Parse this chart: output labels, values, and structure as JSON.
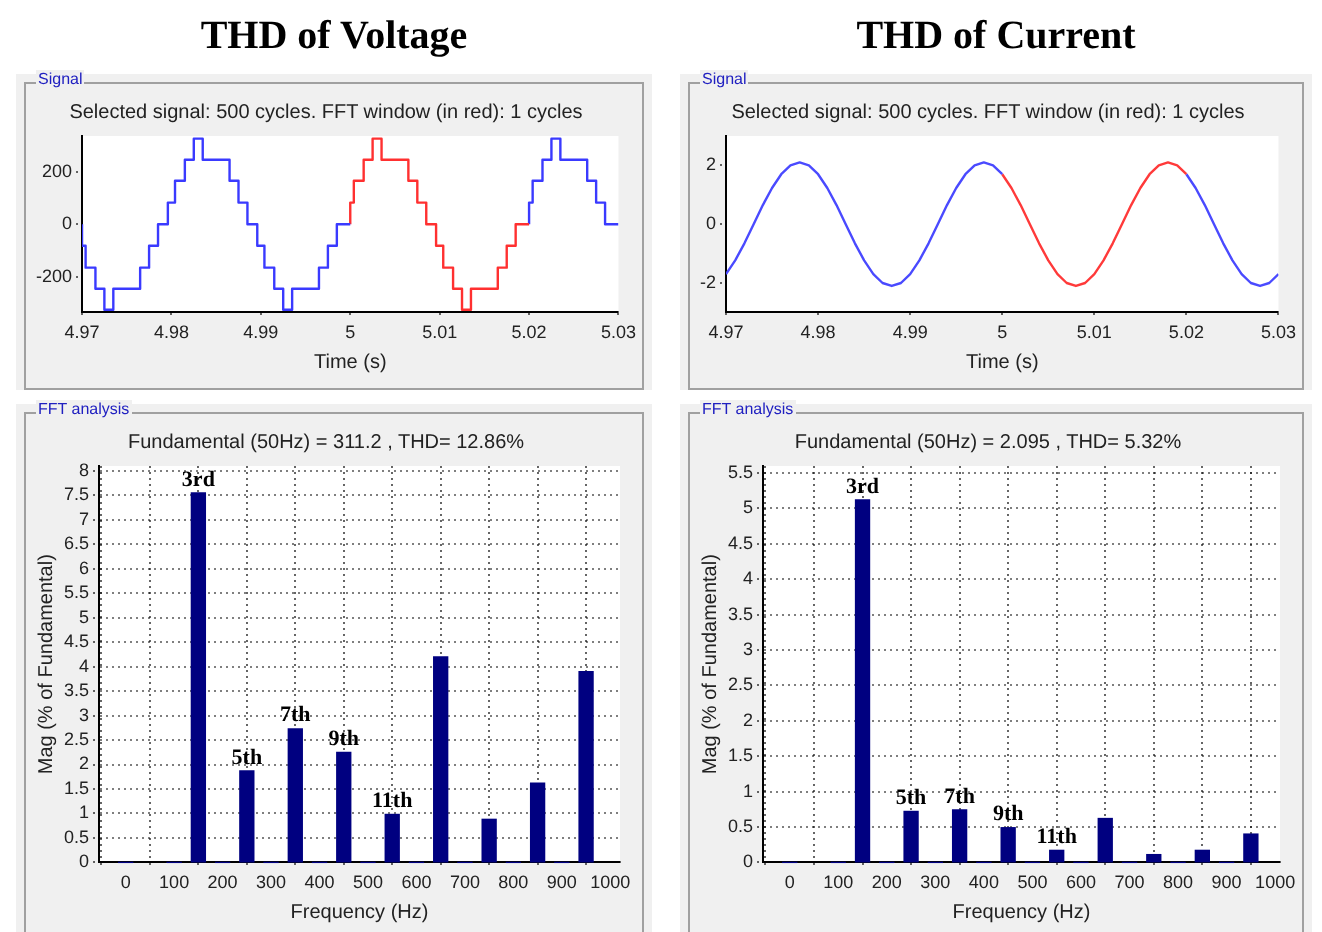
{
  "chart_data": [
    {
      "type": "step",
      "title": "Selected signal: 500 cycles. FFT window (in red): 1 cycles",
      "xlabel": "Time (s)",
      "annotations": [
        "THD of Voltage",
        "Signal"
      ],
      "xlim": [
        4.97,
        5.03
      ],
      "xticks": [
        4.97,
        4.98,
        4.99,
        5,
        5.01,
        5.02,
        5.03
      ],
      "ylim": [
        -335,
        335
      ],
      "yticks": [
        -200,
        0,
        200
      ],
      "series": [
        {
          "color": "#3a3aff",
          "x": [
            4.97,
            4.9704,
            4.9715,
            4.9725,
            4.9735,
            4.9765,
            4.9775,
            4.9785,
            4.9796,
            4.9804,
            4.9815,
            4.9825,
            4.9835,
            4.9865,
            4.9875,
            4.9885,
            4.9896,
            4.9904,
            4.9915,
            4.9925,
            4.9935,
            4.9965,
            4.9975,
            4.9985,
            4.9996,
            5.0
          ],
          "values": [
            0,
            -82,
            -165,
            -245,
            -325,
            -245,
            -165,
            -82,
            0,
            82,
            165,
            245,
            325,
            245,
            165,
            82,
            0,
            -82,
            -165,
            -245,
            -325,
            -245,
            -165,
            -82,
            0,
            0
          ]
        },
        {
          "color": "#ff3030",
          "x": [
            5.0,
            5.0004,
            5.0015,
            5.0025,
            5.0035,
            5.0065,
            5.0075,
            5.0085,
            5.0096,
            5.0104,
            5.0115,
            5.0125,
            5.0135,
            5.0165,
            5.0175,
            5.0185,
            5.0196,
            5.02
          ],
          "values": [
            0,
            82,
            165,
            245,
            325,
            245,
            165,
            82,
            0,
            -82,
            -165,
            -245,
            -325,
            -245,
            -165,
            -82,
            0,
            0
          ]
        },
        {
          "color": "#3a3aff",
          "x": [
            5.02,
            5.0204,
            5.0215,
            5.0225,
            5.0235,
            5.0265,
            5.0275,
            5.0285,
            5.0296,
            5.03
          ],
          "values": [
            0,
            82,
            165,
            245,
            325,
            245,
            165,
            82,
            0,
            0
          ]
        }
      ]
    },
    {
      "type": "line",
      "title": "Selected signal: 500 cycles. FFT window (in red): 1 cycles",
      "xlabel": "Time (s)",
      "annotations": [
        "THD of Current",
        "Signal"
      ],
      "xlim": [
        4.97,
        5.03
      ],
      "xticks": [
        4.97,
        4.98,
        4.99,
        5,
        5.01,
        5.02,
        5.03
      ],
      "ylim": [
        -3,
        3
      ],
      "yticks": [
        -2,
        0,
        2
      ],
      "series": [
        {
          "color": "#4a4aff",
          "x": [
            4.97,
            4.971,
            4.972,
            4.973,
            4.974,
            4.975,
            4.976,
            4.977,
            4.978,
            4.979,
            4.98,
            4.981,
            4.982,
            4.983,
            4.984,
            4.985,
            4.986,
            4.987,
            4.988,
            4.989,
            4.99,
            4.991,
            4.992,
            4.993,
            4.994,
            4.995,
            4.996,
            4.997,
            4.998,
            4.999,
            5.0
          ],
          "values": [
            -1.7,
            -1.23,
            -0.65,
            0,
            0.65,
            1.23,
            1.7,
            2.0,
            2.1,
            2.0,
            1.7,
            1.23,
            0.65,
            0,
            -0.65,
            -1.23,
            -1.7,
            -2.0,
            -2.1,
            -2.0,
            -1.7,
            -1.23,
            -0.65,
            0,
            0.65,
            1.23,
            1.7,
            2.0,
            2.1,
            2.0,
            1.7
          ]
        },
        {
          "color": "#ff3a3a",
          "x": [
            5.0,
            5.001,
            5.002,
            5.003,
            5.004,
            5.005,
            5.006,
            5.007,
            5.008,
            5.009,
            5.01,
            5.011,
            5.012,
            5.013,
            5.014,
            5.015,
            5.016,
            5.017,
            5.018,
            5.019,
            5.02
          ],
          "values": [
            1.7,
            1.23,
            0.65,
            0,
            -0.65,
            -1.23,
            -1.7,
            -2.0,
            -2.1,
            -2.0,
            -1.7,
            -1.23,
            -0.65,
            0,
            0.65,
            1.23,
            1.7,
            2.0,
            2.1,
            2.0,
            1.7
          ]
        },
        {
          "color": "#4a4aff",
          "x": [
            5.02,
            5.021,
            5.022,
            5.023,
            5.024,
            5.025,
            5.026,
            5.027,
            5.028,
            5.029,
            5.03
          ],
          "values": [
            1.7,
            1.23,
            0.65,
            0,
            -0.65,
            -1.23,
            -1.7,
            -2.0,
            -2.1,
            -2.0,
            -1.7
          ]
        }
      ]
    },
    {
      "type": "bar",
      "title": "Fundamental (50Hz) = 311.2 , THD= 12.86%",
      "xlabel": "Frequency (Hz)",
      "ylabel": "Mag (% of Fundamental)",
      "grid": true,
      "color": "#000080",
      "xlim": [
        -55,
        1020
      ],
      "xticks": [
        0,
        100,
        200,
        300,
        400,
        500,
        600,
        700,
        800,
        900,
        1000
      ],
      "ylim": [
        0,
        8.1
      ],
      "yticks": [
        0,
        0.5,
        1,
        1.5,
        2,
        2.5,
        3,
        3.5,
        4,
        4.5,
        5,
        5.5,
        6,
        6.5,
        7,
        7.5,
        8
      ],
      "x": [
        0,
        50,
        100,
        150,
        200,
        250,
        300,
        350,
        400,
        450,
        500,
        550,
        600,
        650,
        700,
        750,
        800,
        850,
        900,
        950
      ],
      "values": [
        0,
        null,
        0,
        7.55,
        0,
        1.87,
        0,
        2.73,
        0,
        2.25,
        0,
        0.98,
        0,
        4.2,
        0,
        0.88,
        0,
        1.62,
        0,
        3.9
      ],
      "annotations": [
        "FFT analysis",
        {
          "text": "3rd",
          "x": 150,
          "y": 7.55
        },
        {
          "text": "5th",
          "x": 250,
          "y": 1.87
        },
        {
          "text": "7th",
          "x": 350,
          "y": 2.73
        },
        {
          "text": "9th",
          "x": 450,
          "y": 2.25
        },
        {
          "text": "11th",
          "x": 550,
          "y": 0.98
        }
      ]
    },
    {
      "type": "bar",
      "title": "Fundamental (50Hz) = 2.095 , THD= 5.32%",
      "xlabel": "Frequency (Hz)",
      "ylabel": "Mag (% of Fundamental)",
      "grid": true,
      "color": "#000080",
      "xlim": [
        -55,
        1010
      ],
      "xticks": [
        0,
        100,
        200,
        300,
        400,
        500,
        600,
        700,
        800,
        900,
        1000
      ],
      "ylim": [
        0,
        5.6
      ],
      "yticks": [
        0,
        0.5,
        1,
        1.5,
        2,
        2.5,
        3,
        3.5,
        4,
        4.5,
        5,
        5.5
      ],
      "x": [
        0,
        50,
        100,
        150,
        200,
        250,
        300,
        350,
        400,
        450,
        500,
        550,
        600,
        650,
        700,
        750,
        800,
        850,
        900,
        950
      ],
      "values": [
        0,
        null,
        0,
        5.12,
        0,
        0.72,
        0,
        0.74,
        0,
        0.49,
        0,
        0.17,
        0,
        0.62,
        0,
        0.11,
        0,
        0.17,
        0,
        0.4
      ],
      "annotations": [
        "FFT analysis",
        {
          "text": "3rd",
          "x": 150,
          "y": 5.12
        },
        {
          "text": "5th",
          "x": 250,
          "y": 0.72
        },
        {
          "text": "7th",
          "x": 350,
          "y": 0.74
        },
        {
          "text": "9th",
          "x": 450,
          "y": 0.49
        },
        {
          "text": "11th",
          "x": 550,
          "y": 0.17
        }
      ]
    }
  ]
}
